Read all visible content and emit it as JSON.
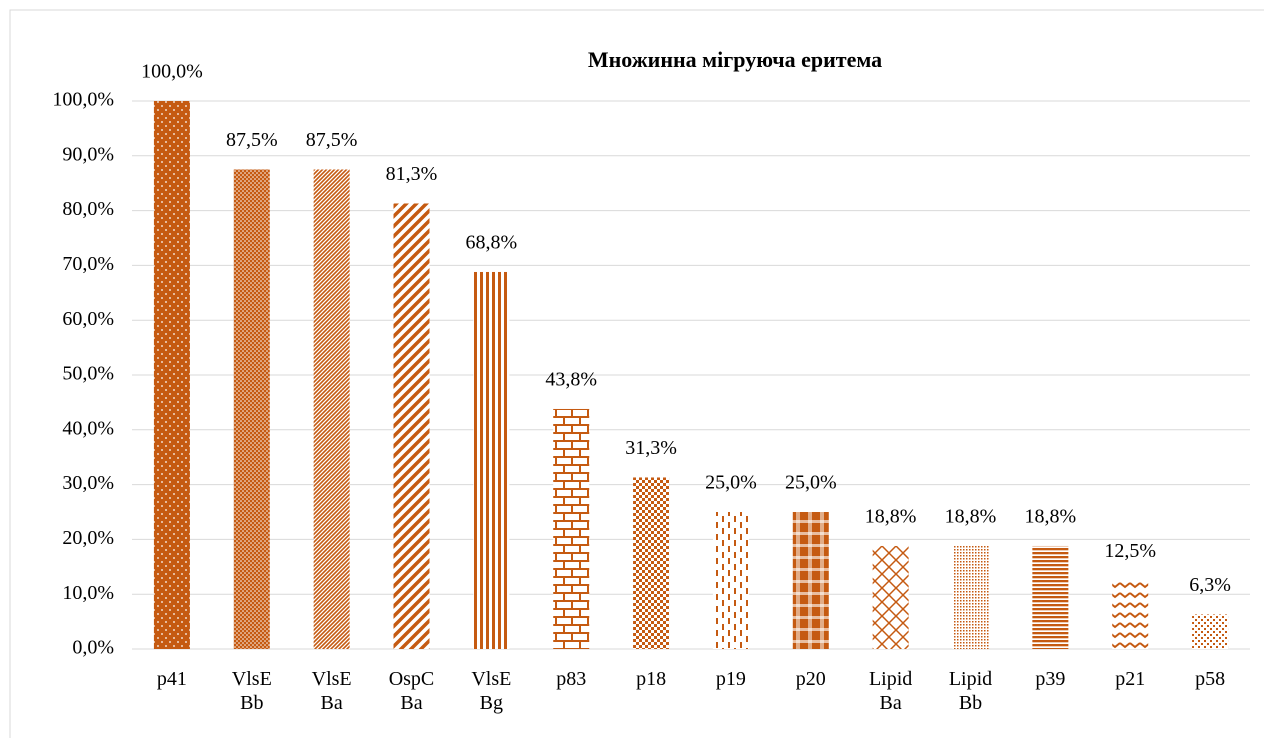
{
  "chart_data": {
    "type": "bar",
    "title": "Множинна мігруюча еритема",
    "categories": [
      "p41",
      "VlsE Bb",
      "VlsE Ba",
      "OspC Ba",
      "VlsE Bg",
      "p83",
      "p18",
      "p19",
      "p20",
      "Lipid Ba",
      "Lipid Bb",
      "p39",
      "p21",
      "p58"
    ],
    "values": [
      100,
      87.5,
      87.5,
      81.3,
      68.8,
      43.8,
      31.3,
      25,
      25,
      18.8,
      18.8,
      18.8,
      12.5,
      6.3
    ],
    "value_labels": [
      "100,0%",
      "87,5%",
      "87,5%",
      "81,3%",
      "68,8%",
      "43,8%",
      "31,3%",
      "25,0%",
      "25,0%",
      "18,8%",
      "18,8%",
      "18,8%",
      "12,5%",
      "6,3%"
    ],
    "color": "#c55a11",
    "ylim": [
      0,
      100
    ],
    "yticks": [
      {
        "value": 0,
        "label": "0,0%"
      },
      {
        "value": 10,
        "label": "10,0%"
      },
      {
        "value": 20,
        "label": "20,0%"
      },
      {
        "value": 30,
        "label": "30,0%"
      },
      {
        "value": 40,
        "label": "40,0%"
      },
      {
        "value": 50,
        "label": "50,0%"
      },
      {
        "value": 60,
        "label": "60,0%"
      },
      {
        "value": 70,
        "label": "70,0%"
      },
      {
        "value": 80,
        "label": "80,0%"
      },
      {
        "value": 90,
        "label": "90,0%"
      },
      {
        "value": 100,
        "label": "100,0%"
      }
    ],
    "grid": true
  }
}
